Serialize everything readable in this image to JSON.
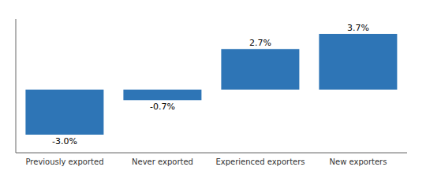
{
  "chart_data": {
    "type": "bar",
    "categories": [
      "Previously exported",
      "Never exported",
      "Experienced exporters",
      "New exporters"
    ],
    "values": [
      -3.0,
      -0.7,
      2.7,
      3.7
    ],
    "value_labels": [
      "-3.0%",
      "-0.7%",
      "2.7%",
      "3.7%"
    ],
    "color": "#2E75B6",
    "ylim": [
      -4.2,
      4.7
    ],
    "data_labels": true,
    "tick_labels": "x"
  }
}
